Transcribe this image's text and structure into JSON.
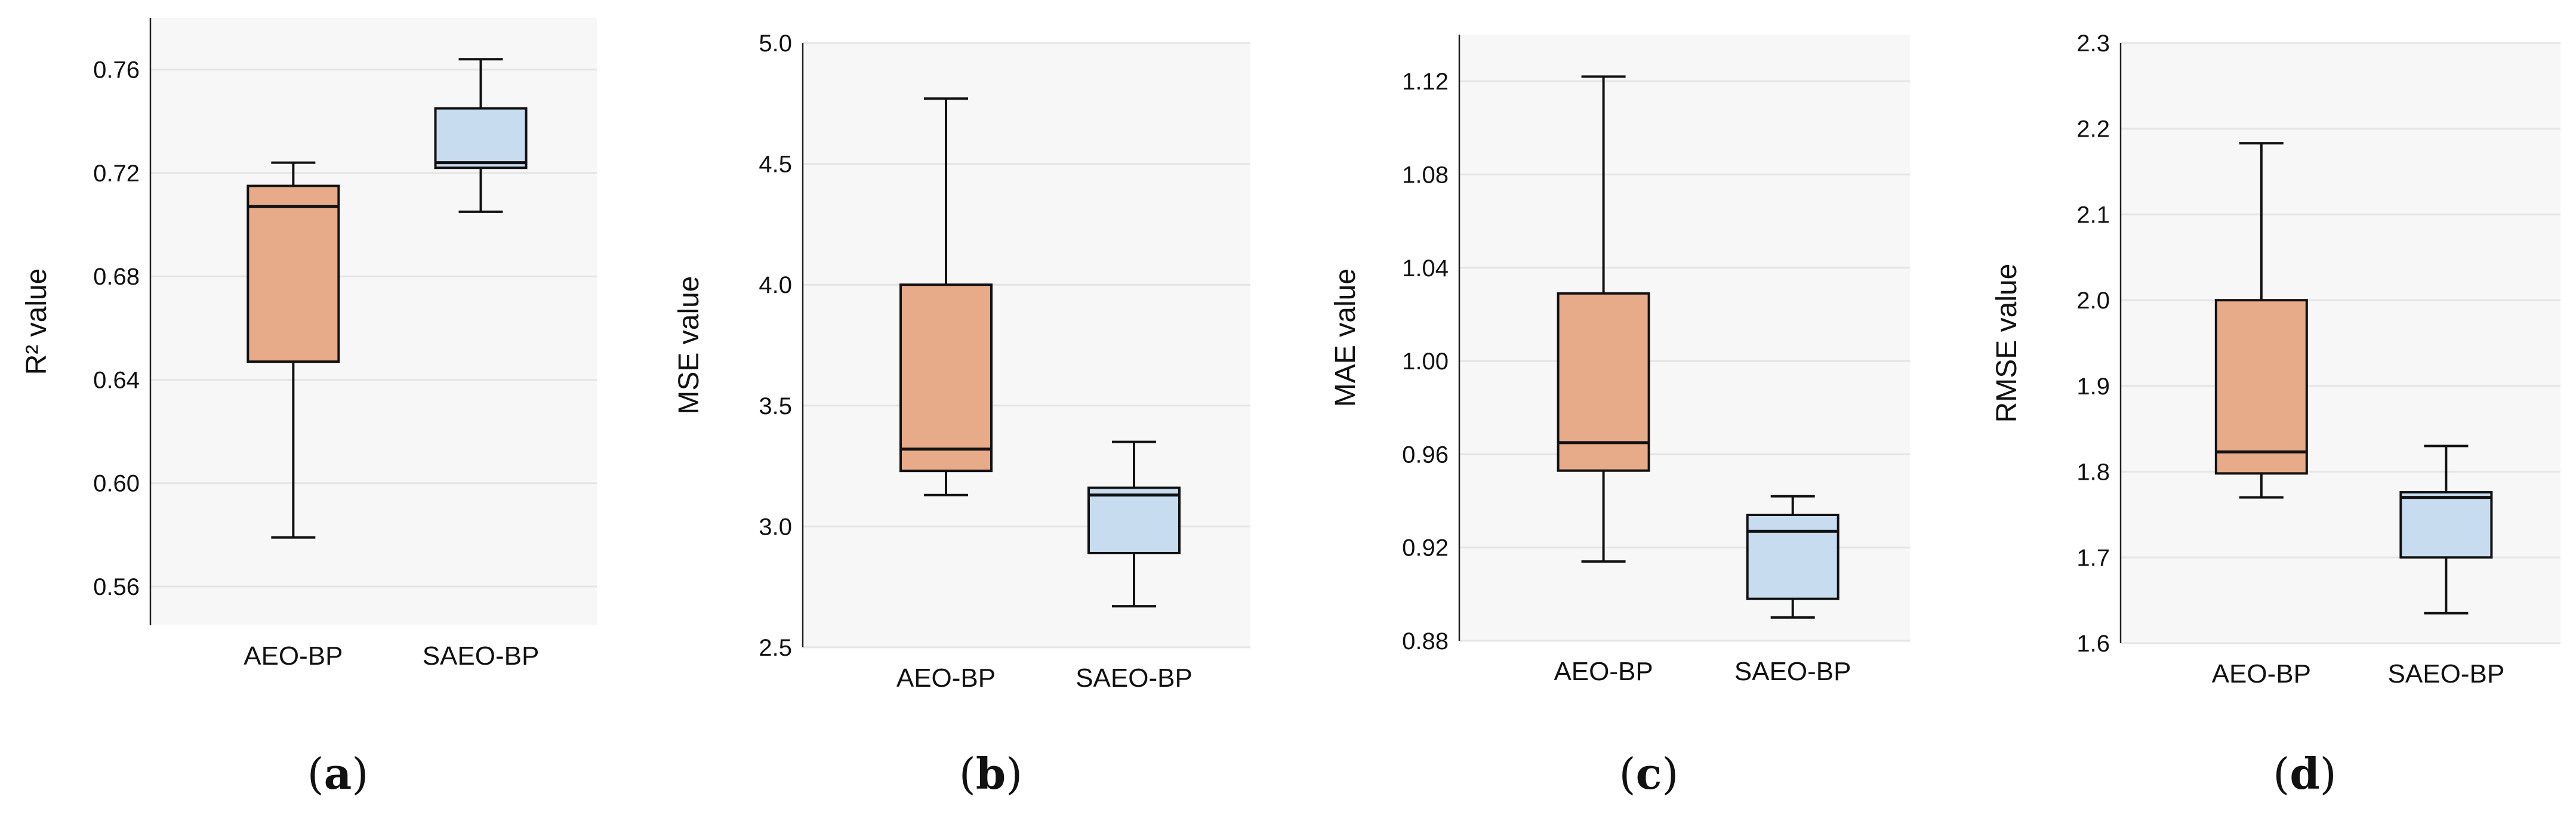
{
  "chart_data": [
    {
      "type": "box",
      "panel": "a",
      "ylabel": "R² value",
      "ylim": [
        0.545,
        0.78
      ],
      "yticks": [
        0.56,
        0.6,
        0.64,
        0.68,
        0.72,
        0.76
      ],
      "ytick_labels": [
        "0.56",
        "0.60",
        "0.64",
        "0.68",
        "0.72",
        "0.76"
      ],
      "categories": [
        "AEO-BP",
        "SAEO-BP"
      ],
      "boxes": [
        {
          "name": "AEO-BP",
          "min": 0.579,
          "q1": 0.647,
          "median": 0.707,
          "q3": 0.715,
          "max": 0.724,
          "color": "#e8ab8a"
        },
        {
          "name": "SAEO-BP",
          "min": 0.705,
          "q1": 0.722,
          "median": 0.724,
          "q3": 0.745,
          "max": 0.764,
          "color": "#c7dcef"
        }
      ],
      "grid": true
    },
    {
      "type": "box",
      "panel": "b",
      "ylabel": "MSE  value",
      "ylim": [
        2.5,
        5.0
      ],
      "yticks": [
        2.5,
        3.0,
        3.5,
        4.0,
        4.5,
        5.0
      ],
      "ytick_labels": [
        "2.5",
        "3.0",
        "3.5",
        "4.0",
        "4.5",
        "5.0"
      ],
      "categories": [
        "AEO-BP",
        "SAEO-BP"
      ],
      "boxes": [
        {
          "name": "AEO-BP",
          "min": 3.13,
          "q1": 3.23,
          "median": 3.32,
          "q3": 4.0,
          "max": 4.77,
          "color": "#e8ab8a"
        },
        {
          "name": "SAEO-BP",
          "min": 2.67,
          "q1": 2.89,
          "median": 3.13,
          "q3": 3.16,
          "max": 3.35,
          "color": "#c7dcef"
        }
      ],
      "grid": true
    },
    {
      "type": "box",
      "panel": "c",
      "ylabel": "MAE value",
      "ylim": [
        0.88,
        1.14
      ],
      "yticks": [
        0.88,
        0.92,
        0.96,
        1.0,
        1.04,
        1.08,
        1.12
      ],
      "ytick_labels": [
        "0.88",
        "0.92",
        "0.96",
        "1.00",
        "1.04",
        "1.08",
        "1.12"
      ],
      "categories": [
        "AEO-BP",
        "SAEO-BP"
      ],
      "boxes": [
        {
          "name": "AEO-BP",
          "min": 0.914,
          "q1": 0.953,
          "median": 0.965,
          "q3": 1.029,
          "max": 1.122,
          "color": "#e8ab8a"
        },
        {
          "name": "SAEO-BP",
          "min": 0.89,
          "q1": 0.898,
          "median": 0.927,
          "q3": 0.934,
          "max": 0.942,
          "color": "#c7dcef"
        }
      ],
      "grid": true
    },
    {
      "type": "box",
      "panel": "d",
      "ylabel": "RMSE  value",
      "ylim": [
        1.6,
        2.3
      ],
      "yticks": [
        1.6,
        1.7,
        1.8,
        1.9,
        2.0,
        2.1,
        2.2,
        2.3
      ],
      "ytick_labels": [
        "1.6",
        "1.7",
        "1.8",
        "1.9",
        "2.0",
        "2.1",
        "2.2",
        "2.3"
      ],
      "categories": [
        "AEO-BP",
        "SAEO-BP"
      ],
      "boxes": [
        {
          "name": "AEO-BP",
          "min": 1.77,
          "q1": 1.798,
          "median": 1.823,
          "q3": 2.0,
          "max": 2.183,
          "color": "#e8ab8a"
        },
        {
          "name": "SAEO-BP",
          "min": 1.635,
          "q1": 1.7,
          "median": 1.77,
          "q3": 1.776,
          "max": 1.83,
          "color": "#c7dcef"
        }
      ],
      "grid": true
    }
  ],
  "panel_labels": [
    "(a)",
    "(b)",
    "(c)",
    "(d)"
  ],
  "colors": {
    "grid": "#e4e4e4",
    "plot_bg": "#f7f7f7",
    "line": "#111111"
  }
}
